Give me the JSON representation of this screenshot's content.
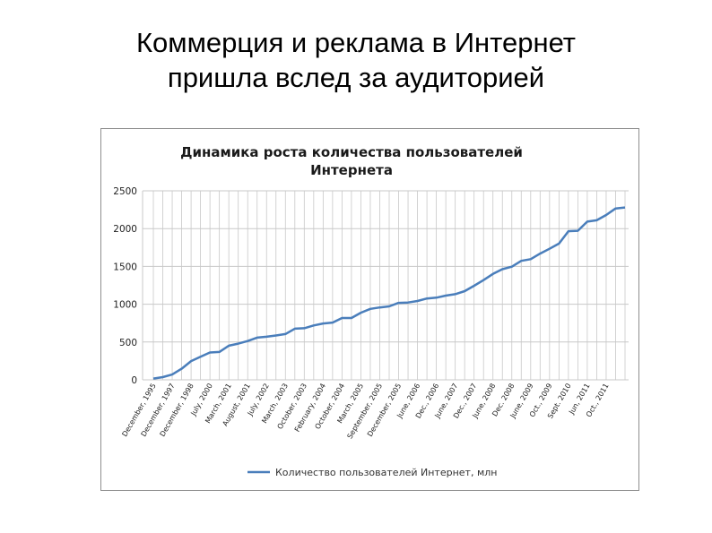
{
  "slide": {
    "title_line1": "Коммерция и реклама в Интернет",
    "title_line2": "пришла вслед за аудиторией"
  },
  "colors": {
    "series": "#4a7ebb",
    "grid": "#c8c8c8",
    "frame": "#8e8e8e"
  },
  "chart_data": {
    "type": "line",
    "title_line1": "Динамика роста количества пользователей",
    "title_line2": "Интернета",
    "ylim": [
      0,
      2500
    ],
    "yticks": [
      0,
      500,
      1000,
      1500,
      2000,
      2500
    ],
    "grid": true,
    "legend_position": "bottom",
    "x_labels": [
      "December, 1995",
      "December, 1997",
      "December, 1998",
      "July, 2000",
      "March, 2001",
      "August, 2001",
      "July, 2002",
      "March, 2003",
      "October, 2003",
      "February, 2004",
      "October, 2004",
      "March, 2005",
      "September, 2005",
      "December, 2005",
      "June, 2006",
      "Dec., 2006",
      "June, 2007",
      "Dec., 2007",
      "June, 2008",
      "Dec. 2008",
      "June, 2009",
      "Oct., 2009",
      "Sept. 2010",
      "Jun, 2011",
      "Oct., 2011"
    ],
    "series": [
      {
        "name": "Количество пользователей Интернет, млн",
        "values": [
          16,
          36,
          70,
          147,
          248,
          304,
          361,
          369,
          451,
          479,
          513,
          558,
          570,
          587,
          605,
          677,
          682,
          719,
          745,
          757,
          817,
          817,
          888,
          938,
          957,
          972,
          1018,
          1022,
          1043,
          1076,
          1086,
          1114,
          1133,
          1173,
          1244,
          1319,
          1401,
          1463,
          1496,
          1574,
          1596,
          1669,
          1734,
          1802,
          1966,
          1971,
          2093,
          2110,
          2180,
          2267,
          2280
        ]
      }
    ]
  }
}
